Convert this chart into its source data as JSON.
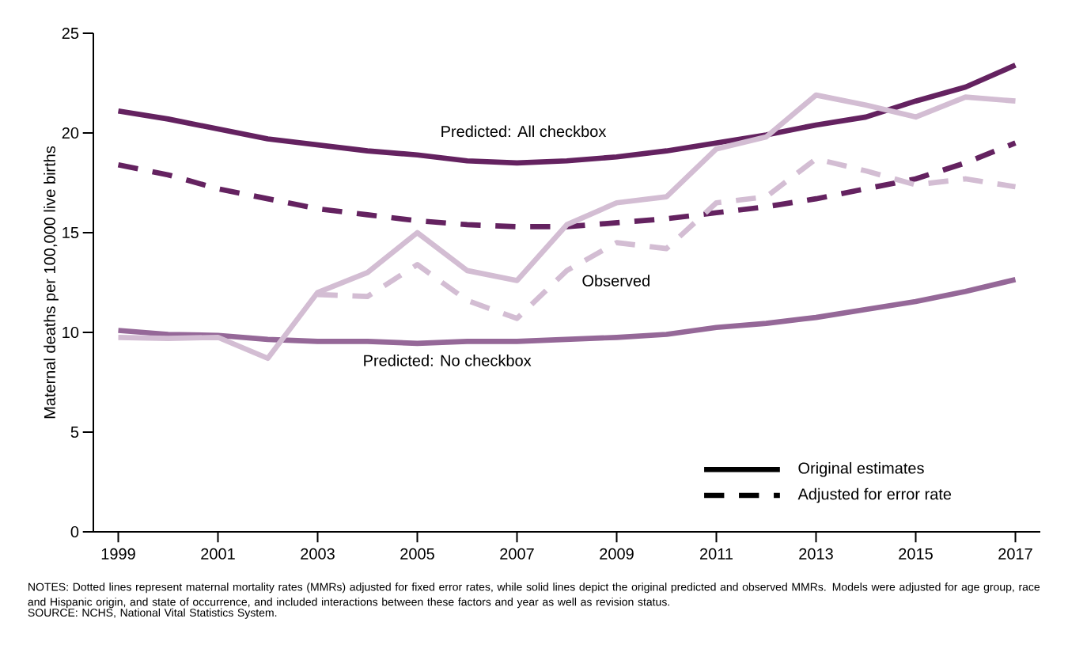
{
  "chart_data": {
    "type": "line",
    "ylabel": "Maternal deaths per 100,000 live births",
    "x": [
      1999,
      2000,
      2001,
      2002,
      2003,
      2004,
      2005,
      2006,
      2007,
      2008,
      2009,
      2010,
      2011,
      2012,
      2013,
      2014,
      2015,
      2016,
      2017
    ],
    "xlim": [
      1998.5,
      2017.5
    ],
    "xticks": [
      1999,
      2001,
      2003,
      2005,
      2007,
      2009,
      2011,
      2013,
      2015,
      2017
    ],
    "ylim": [
      0,
      25
    ],
    "yticks": [
      0,
      5,
      10,
      15,
      20,
      25
    ],
    "series": [
      {
        "name": "Predicted: All checkbox",
        "color": "#642260",
        "line_style": "solid",
        "values": [
          21.1,
          20.7,
          20.2,
          19.7,
          19.4,
          19.1,
          18.9,
          18.6,
          18.5,
          18.6,
          18.8,
          19.1,
          19.5,
          19.9,
          20.4,
          20.8,
          21.6,
          22.3,
          23.4
        ]
      },
      {
        "color": "#642260",
        "line_style": "dashed",
        "values": [
          18.4,
          17.9,
          17.2,
          16.7,
          16.2,
          15.9,
          15.6,
          15.4,
          15.3,
          15.3,
          15.5,
          15.7,
          16.0,
          16.3,
          16.7,
          17.2,
          17.7,
          18.5,
          19.5
        ]
      },
      {
        "name": "Predicted: No checkbox",
        "color": "#956898",
        "line_style": "solid",
        "values": [
          10.1,
          9.9,
          9.85,
          9.65,
          9.55,
          9.55,
          9.45,
          9.55,
          9.55,
          9.65,
          9.75,
          9.9,
          10.25,
          10.45,
          10.75,
          11.15,
          11.55,
          12.05,
          12.65
        ]
      },
      {
        "name": "Observed",
        "color": "#d3bdd3",
        "line_style": "solid",
        "values": [
          9.75,
          9.7,
          9.75,
          8.7,
          12.0,
          13.0,
          15.0,
          13.1,
          12.6,
          15.4,
          16.5,
          16.8,
          19.2,
          19.8,
          21.9,
          21.4,
          20.8,
          21.8,
          21.6
        ]
      },
      {
        "color": "#d3bdd3",
        "line_style": "dashed",
        "values": [
          null,
          null,
          null,
          null,
          11.9,
          11.8,
          13.4,
          11.6,
          10.7,
          13.1,
          14.5,
          14.2,
          16.5,
          16.8,
          18.7,
          18.1,
          17.4,
          17.7,
          17.3
        ]
      }
    ],
    "grid": false,
    "annotations": [
      "Original estimates",
      "Adjusted for error rate",
      "NOTES: Dotted lines represent maternal mortality rates (MMRs) adjusted for fixed error rates, while solid lines depict the original predicted and observed MMRs. Models were adjusted for age group, race and Hispanic origin, and state of occurrence, and included interactions between these factors and year as well as revision status.",
      "SOURCE: NCHS, National Vital Statistics System."
    ]
  }
}
